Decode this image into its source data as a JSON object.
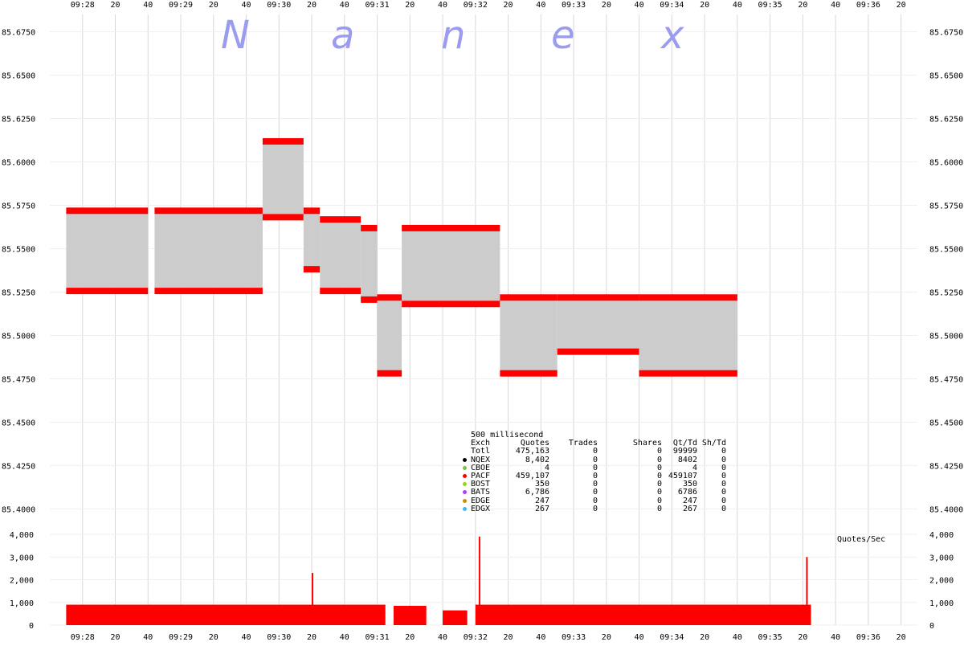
{
  "watermark": [
    "N",
    "a",
    "n",
    "e",
    "x"
  ],
  "chart_data": {
    "type": "line",
    "title": "",
    "price_axis": {
      "ylim": [
        85.39,
        85.685
      ],
      "ticks": [
        "85.6750",
        "85.6500",
        "85.6250",
        "85.6000",
        "85.5750",
        "85.5500",
        "85.5250",
        "85.5000",
        "85.4750",
        "85.4500",
        "85.4250",
        "85.4000"
      ]
    },
    "time_axis": {
      "range": [
        "09:27:40",
        "09:36:30"
      ],
      "ticks": [
        "09:28",
        "20",
        "40",
        "09:29",
        "20",
        "40",
        "09:30",
        "20",
        "40",
        "09:31",
        "20",
        "40",
        "09:32",
        "20",
        "40",
        "09:33",
        "20",
        "40",
        "09:34",
        "20",
        "40",
        "09:35",
        "20",
        "40",
        "09:36",
        "20"
      ]
    },
    "nbbo_spread_segments": [
      {
        "t0": "09:27:50",
        "t1": "09:28:40",
        "bid": 85.5275,
        "ask": 85.57
      },
      {
        "t0": "09:28:44",
        "t1": "09:29:50",
        "bid": 85.5275,
        "ask": 85.57
      },
      {
        "t0": "09:29:50",
        "t1": "09:30:15",
        "bid": 85.57,
        "ask": 85.61
      },
      {
        "t0": "09:30:15",
        "t1": "09:30:25",
        "bid": 85.54,
        "ask": 85.57
      },
      {
        "t0": "09:30:25",
        "t1": "09:30:50",
        "bid": 85.5275,
        "ask": 85.565
      },
      {
        "t0": "09:30:50",
        "t1": "09:31:00",
        "bid": 85.5225,
        "ask": 85.56
      },
      {
        "t0": "09:31:00",
        "t1": "09:31:12",
        "bid": 85.48,
        "ask": 85.52
      },
      {
        "t0": "09:31:12",
        "t1": "09:31:15",
        "bid": 85.48,
        "ask": 85.52
      },
      {
        "t0": "09:31:15",
        "t1": "09:32:15",
        "bid": 85.52,
        "ask": 85.56
      },
      {
        "t0": "09:32:15",
        "t1": "09:32:50",
        "bid": 85.48,
        "ask": 85.52
      },
      {
        "t0": "09:32:50",
        "t1": "09:33:40",
        "bid": 85.4925,
        "ask": 85.52
      },
      {
        "t0": "09:33:40",
        "t1": "09:34:40",
        "bid": 85.48,
        "ask": 85.52
      }
    ],
    "quote_rate_axis": {
      "label": "Quotes/Sec",
      "ylim": [
        0,
        4000
      ],
      "ticks": [
        "4,000",
        "3,000",
        "2,000",
        "1,000",
        "0"
      ]
    },
    "quote_rate_segments": [
      {
        "t0": "09:27:50",
        "t1": "09:31:05",
        "level": 900
      },
      {
        "t0": "09:31:10",
        "t1": "09:31:30",
        "level": 850
      },
      {
        "t0": "09:31:40",
        "t1": "09:31:55",
        "level": 650
      },
      {
        "t0": "09:32:00",
        "t1": "09:35:25",
        "level": 900
      }
    ],
    "quote_rate_spikes": [
      {
        "t": "09:32:02",
        "value": 3900
      },
      {
        "t": "09:30:20",
        "value": 2300
      },
      {
        "t": "09:35:22",
        "value": 3000
      }
    ]
  },
  "stats": {
    "interval": "500 millisecond",
    "headers": [
      "Exch",
      "Quotes",
      "Trades",
      "Shares",
      "Qt/Td",
      "Sh/Td"
    ],
    "rows": [
      {
        "exch": "Totl",
        "quotes": "475,163",
        "trades": "0",
        "shares": "0",
        "qt_td": "99999",
        "sh_td": "0",
        "color": ""
      },
      {
        "exch": "NQEX",
        "quotes": "8,402",
        "trades": "0",
        "shares": "0",
        "qt_td": "8402",
        "sh_td": "0",
        "color": "#000000"
      },
      {
        "exch": "CBOE",
        "quotes": "4",
        "trades": "0",
        "shares": "0",
        "qt_td": "4",
        "sh_td": "0",
        "color": "#80c040"
      },
      {
        "exch": "PACF",
        "quotes": "459,107",
        "trades": "0",
        "shares": "0",
        "qt_td": "459107",
        "sh_td": "0",
        "color": "#ff0000"
      },
      {
        "exch": "BOST",
        "quotes": "350",
        "trades": "0",
        "shares": "0",
        "qt_td": "350",
        "sh_td": "0",
        "color": "#a0d020"
      },
      {
        "exch": "BATS",
        "quotes": "6,786",
        "trades": "0",
        "shares": "0",
        "qt_td": "6786",
        "sh_td": "0",
        "color": "#b040ff"
      },
      {
        "exch": "EDGE",
        "quotes": "247",
        "trades": "0",
        "shares": "0",
        "qt_td": "247",
        "sh_td": "0",
        "color": "#d08c00"
      },
      {
        "exch": "EDGX",
        "quotes": "267",
        "trades": "0",
        "shares": "0",
        "qt_td": "267",
        "sh_td": "0",
        "color": "#40b8f0"
      }
    ]
  },
  "colors": {
    "spread_fill": "#cccccc",
    "bid_ask_markers": "#ff0000",
    "quote_rate": "#ff0000",
    "watermark": "#9b9bf0",
    "grid": "#d8d8d8"
  }
}
